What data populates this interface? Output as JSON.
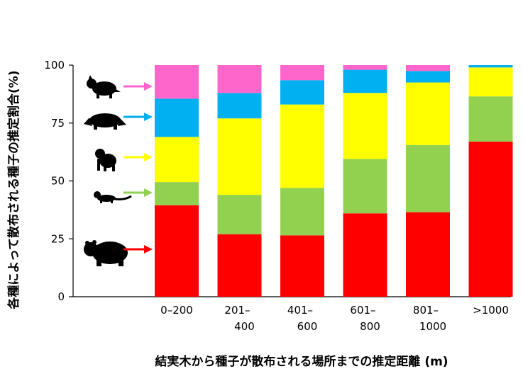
{
  "chart_data": {
    "type": "bar",
    "stacked": true,
    "title": "",
    "xlabel": "結実木から種子が散布される場所までの推定距離 (m)",
    "ylabel": "各種によって散布される種子の推定割合(%)",
    "ylim": [
      0,
      100
    ],
    "yticks": [
      "0",
      "25",
      "50",
      "75",
      "100"
    ],
    "categories": [
      [
        "0–200"
      ],
      [
        "201–",
        "400"
      ],
      [
        "401–",
        "600"
      ],
      [
        "601–",
        "800"
      ],
      [
        "801–",
        "1000"
      ],
      [
        ">1000"
      ]
    ],
    "series": [
      {
        "icon": "bear-icon",
        "color": "#ff0000",
        "values": [
          39.5,
          27,
          26.5,
          36,
          36.5,
          67
        ]
      },
      {
        "icon": "marten-icon",
        "color": "#92d050",
        "values": [
          10,
          17,
          20.5,
          23.5,
          29,
          19.5
        ]
      },
      {
        "icon": "monkey-icon",
        "color": "#ffff00",
        "values": [
          19.5,
          33,
          36,
          28.5,
          27,
          12.5
        ]
      },
      {
        "icon": "badger-icon",
        "color": "#00b0f0",
        "values": [
          16.5,
          11,
          10.5,
          10,
          5,
          1
        ]
      },
      {
        "icon": "raccoon-dog-icon",
        "color": "#ff66cc",
        "values": [
          14.5,
          12,
          6.5,
          2,
          2.5,
          0
        ]
      }
    ],
    "grid": false,
    "legend": "left"
  }
}
